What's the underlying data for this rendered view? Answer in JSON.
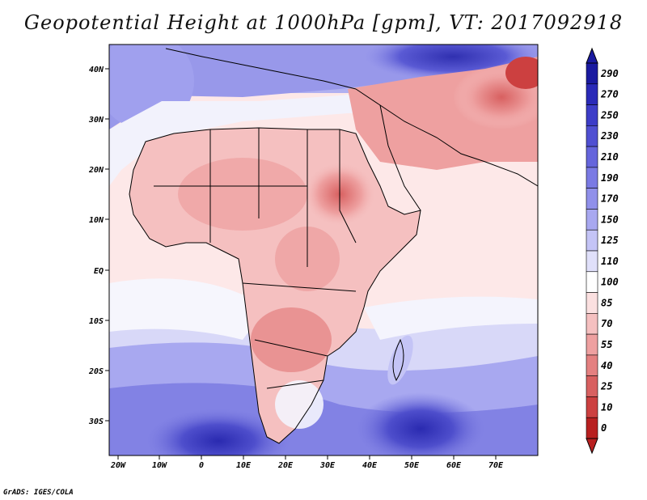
{
  "title": "Geopotential Height at 1000hPa [gpm], VT: 2017092918",
  "credit": "GrADS: IGES/COLA",
  "axes": {
    "lat_labels": [
      "40N",
      "30N",
      "20N",
      "10N",
      "EQ",
      "10S",
      "20S",
      "30S"
    ],
    "lon_labels": [
      "20W",
      "10W",
      "0",
      "10E",
      "20E",
      "30E",
      "40E",
      "50E",
      "60E",
      "70E"
    ]
  },
  "colorbar": {
    "levels": [
      "290",
      "270",
      "250",
      "230",
      "210",
      "190",
      "170",
      "150",
      "125",
      "110",
      "100",
      "85",
      "70",
      "55",
      "40",
      "25",
      "10",
      "0"
    ],
    "colors": [
      "#1a1aa0",
      "#2a2ab8",
      "#3d3dc8",
      "#5050d2",
      "#6565dc",
      "#7a7ae4",
      "#9090ea",
      "#a8a8f0",
      "#c4c4f6",
      "#e0e0fa",
      "#ffffff",
      "#fbe0e0",
      "#f5c0c0",
      "#eea0a0",
      "#e48080",
      "#d86060",
      "#cc4040",
      "#b82020"
    ]
  }
}
